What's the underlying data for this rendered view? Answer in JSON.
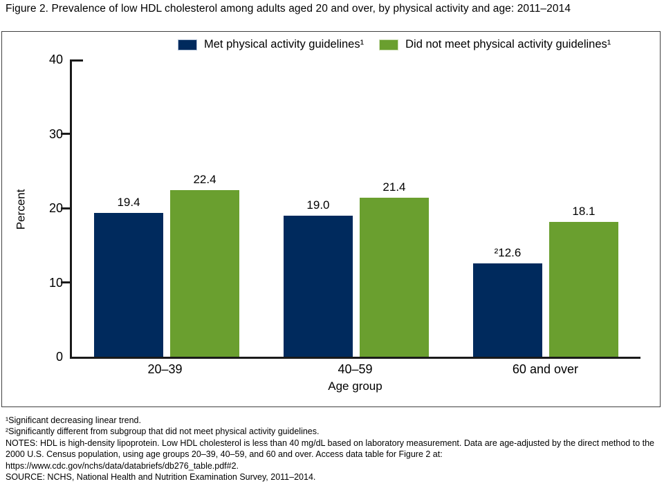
{
  "title": "Figure 2. Prevalence of low HDL cholesterol among adults aged 20 and over, by physical activity and age: 2011–2014",
  "legend": {
    "met": {
      "label": "Met physical activity guidelines¹"
    },
    "did_not": {
      "label": "Did not meet physical activity guidelines¹"
    }
  },
  "colors": {
    "met": "#002a5d",
    "did_not": "#6a9f2f",
    "swatch_border_met": "#b3c2d8",
    "swatch_border_did_not": "#cfe0b8",
    "axis": "#1a1a1a"
  },
  "chart_data": {
    "type": "bar",
    "categories": [
      "20–39",
      "40–59",
      "60 and over"
    ],
    "series": [
      {
        "name": "Met physical activity guidelines",
        "color_key": "met",
        "values": [
          19.4,
          19.0,
          12.6
        ],
        "value_labels": [
          "19.4",
          "19.0",
          "²12.6"
        ]
      },
      {
        "name": "Did not meet physical activity guidelines",
        "color_key": "did_not",
        "values": [
          22.4,
          21.4,
          18.1
        ],
        "value_labels": [
          "22.4",
          "21.4",
          "18.1"
        ]
      }
    ],
    "title": "Figure 2. Prevalence of low HDL cholesterol among adults aged 20 and over, by physical activity and age: 2011–2014",
    "xlabel": "Age group",
    "ylabel": "Percent",
    "ylim": [
      0,
      40
    ],
    "yticks": [
      0,
      10,
      20,
      30,
      40
    ],
    "grid": false,
    "legend_position": "top"
  },
  "footnotes": [
    "¹Significant decreasing linear trend.",
    "²Significantly different from subgroup that did not meet physical activity guidelines.",
    "NOTES: HDL is high-density lipoprotein. Low HDL cholesterol is less than 40 mg/dL based on laboratory measurement. Data are age-adjusted by the direct method to the 2000 U.S. Census population, using age groups 20–39, 40–59, and 60 and over. Access data table for Figure 2 at: https://www.cdc.gov/nchs/data/databriefs/db276_table.pdf#2.",
    "SOURCE: NCHS, National Health and Nutrition Examination Survey, 2011–2014."
  ]
}
